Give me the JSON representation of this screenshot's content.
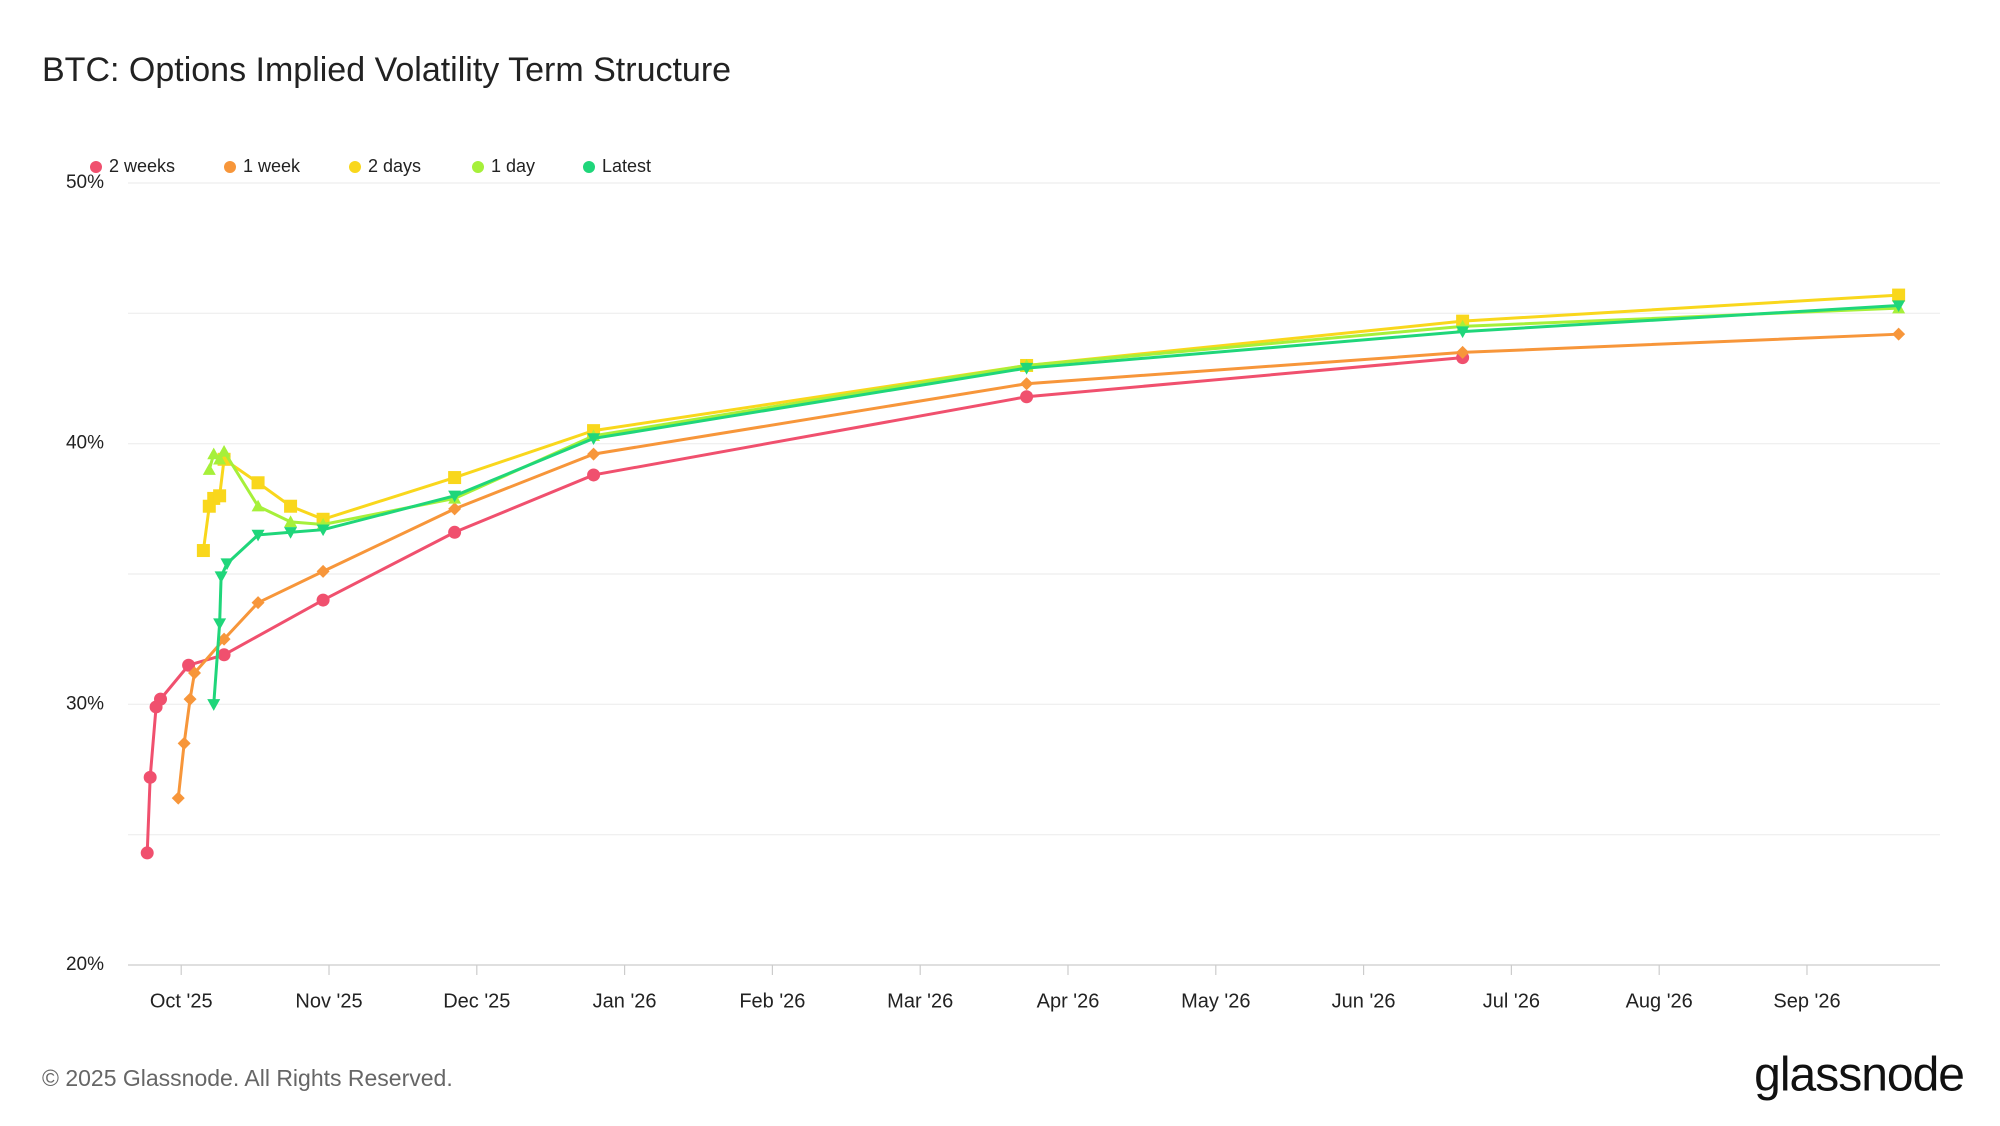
{
  "chart_data": {
    "type": "line",
    "title": "BTC: Options Implied Volatility Term Structure",
    "footer": "© 2025 Glassnode. All Rights Reserved.",
    "logo": "glassnode",
    "xlim": [
      -0.36,
      11.9
    ],
    "xticks": [
      {
        "value": 0,
        "label": "Oct '25"
      },
      {
        "value": 1,
        "label": "Nov '25"
      },
      {
        "value": 2,
        "label": "Dec '25"
      },
      {
        "value": 3,
        "label": "Jan '26"
      },
      {
        "value": 4,
        "label": "Feb '26"
      },
      {
        "value": 5,
        "label": "Mar '26"
      },
      {
        "value": 6,
        "label": "Apr '26"
      },
      {
        "value": 7,
        "label": "May '26"
      },
      {
        "value": 8,
        "label": "Jun '26"
      },
      {
        "value": 9,
        "label": "Jul '26"
      },
      {
        "value": 10,
        "label": "Aug '26"
      },
      {
        "value": 11,
        "label": "Sep '26"
      }
    ],
    "ylim": [
      20,
      50
    ],
    "yticks": [
      {
        "value": 20,
        "label": "20%"
      },
      {
        "value": 30,
        "label": "30%"
      },
      {
        "value": 40,
        "label": "40%"
      },
      {
        "value": 50,
        "label": "50%"
      }
    ],
    "minor_grid": [
      25,
      35,
      45
    ],
    "grid": true,
    "series": [
      {
        "name": "2 weeks",
        "color": "#f0506e",
        "marker": "circle",
        "x": [
          -0.23,
          -0.21,
          -0.17,
          -0.14,
          0.05,
          0.29,
          0.96,
          1.85,
          2.79,
          5.72,
          8.67
        ],
        "values": [
          24.3,
          27.2,
          29.9,
          30.2,
          31.5,
          31.9,
          34.0,
          36.6,
          38.8,
          41.8,
          43.3
        ]
      },
      {
        "name": "1 week",
        "color": "#f7963a",
        "marker": "diamond",
        "x": [
          -0.02,
          0.02,
          0.06,
          0.09,
          0.29,
          0.52,
          0.96,
          1.85,
          2.79,
          5.72,
          8.67,
          11.62
        ],
        "values": [
          26.4,
          28.5,
          30.2,
          31.2,
          32.5,
          33.9,
          35.1,
          37.5,
          39.6,
          42.3,
          43.5,
          44.2
        ]
      },
      {
        "name": "2 days",
        "color": "#f9d71c",
        "marker": "square",
        "x": [
          0.15,
          0.19,
          0.22,
          0.26,
          0.29,
          0.52,
          0.74,
          0.96,
          1.85,
          2.79,
          5.72,
          8.67,
          11.62
        ],
        "values": [
          35.9,
          37.6,
          37.9,
          38.0,
          39.4,
          38.5,
          37.6,
          37.1,
          38.7,
          40.5,
          43.0,
          44.7,
          45.7
        ]
      },
      {
        "name": "1 day",
        "color": "#a6f03a",
        "marker": "triangle-up",
        "x": [
          0.19,
          0.22,
          0.26,
          0.29,
          0.52,
          0.74,
          0.96,
          1.85,
          2.79,
          5.72,
          8.67,
          11.62
        ],
        "values": [
          39.0,
          39.6,
          39.4,
          39.7,
          37.6,
          37.0,
          36.9,
          37.9,
          40.3,
          43.0,
          44.5,
          45.2
        ]
      },
      {
        "name": "Latest",
        "color": "#1fd67a",
        "marker": "triangle-down",
        "x": [
          0.22,
          0.26,
          0.27,
          0.31,
          0.52,
          0.74,
          0.96,
          1.85,
          2.79,
          5.72,
          8.67,
          11.62
        ],
        "values": [
          30.0,
          33.1,
          34.9,
          35.4,
          36.5,
          36.6,
          36.7,
          38.0,
          40.2,
          42.9,
          44.3,
          45.3
        ]
      }
    ]
  }
}
